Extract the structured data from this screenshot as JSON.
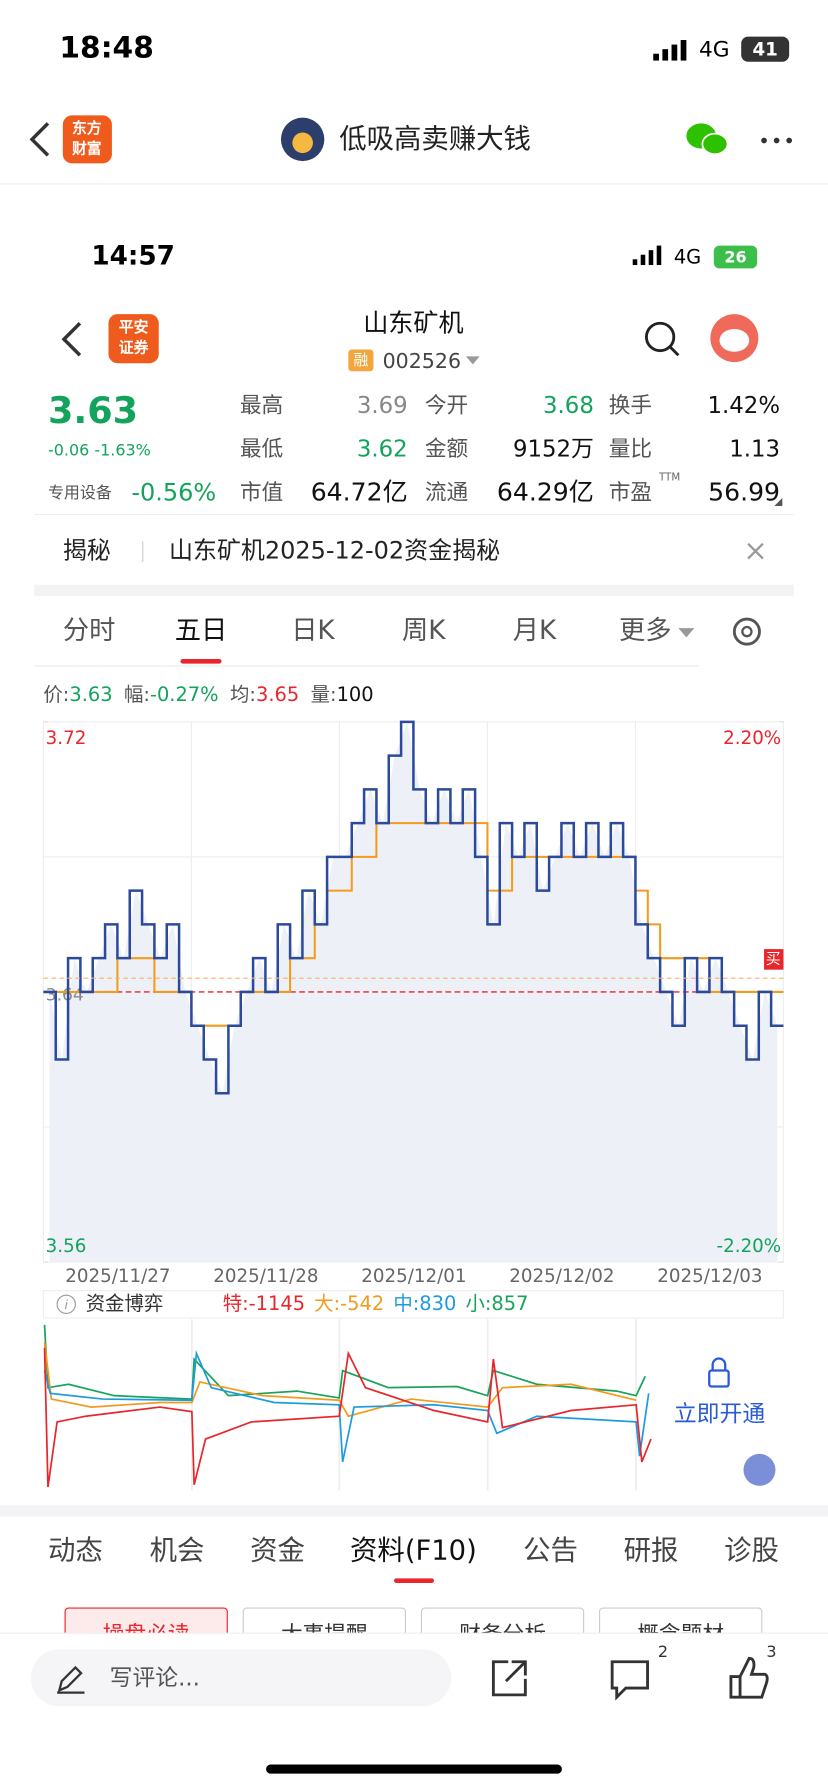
{
  "status": {
    "time": "18:48",
    "network": "4G",
    "battery": "41"
  },
  "nav": {
    "logo": [
      "东方",
      "财富"
    ],
    "title": "低吸高卖赚大钱"
  },
  "inner_status": {
    "time": "14:57",
    "network": "4G",
    "battery": "26"
  },
  "stock": {
    "broker": [
      "平安",
      "证券"
    ],
    "name": "山东矿机",
    "tag": "融",
    "code": "002526"
  },
  "quote": {
    "price": "3.63",
    "change": "-0.06 -1.63%",
    "sector": "专用设备",
    "sector_change": "-0.56%",
    "cells": [
      {
        "label": "最高",
        "value": "3.69"
      },
      {
        "label": "今开",
        "value": "3.68"
      },
      {
        "label": "换手",
        "value": "1.42%"
      },
      {
        "label": "最低",
        "value": "3.62"
      },
      {
        "label": "金额",
        "value": "9152万"
      },
      {
        "label": "量比",
        "value": "1.13"
      },
      {
        "label": "市值",
        "value": "64.72亿"
      },
      {
        "label": "流通",
        "value": "64.29亿"
      },
      {
        "label": "市盈",
        "value": "56.99"
      }
    ],
    "ttm": "TTM"
  },
  "banner": {
    "tag": "揭秘",
    "text": "山东矿机2025-12-02资金揭秘"
  },
  "tabs": [
    "分时",
    "五日",
    "日K",
    "周K",
    "月K",
    "更多"
  ],
  "info": {
    "items": [
      {
        "label": "价:",
        "value": "3.63"
      },
      {
        "label": "幅:",
        "value": "-0.27%"
      },
      {
        "label": "均:",
        "value": "3.65"
      },
      {
        "label": "量:",
        "value": "100"
      }
    ]
  },
  "chart_data": {
    "type": "line",
    "categories": [
      null,
      null,
      null,
      null,
      null,
      null,
      "2025/11/27",
      null,
      null,
      null,
      null,
      null,
      null,
      null,
      null,
      null,
      null,
      null,
      "2025/11/28",
      null,
      null,
      null,
      null,
      null,
      null,
      null,
      null,
      null,
      null,
      null,
      "2025/12/01",
      null,
      null,
      null,
      null,
      null,
      null,
      null,
      null,
      null,
      null,
      null,
      "2025/12/02",
      null,
      null,
      null,
      null,
      null,
      null,
      null,
      null,
      null,
      null,
      null,
      "2025/12/03",
      null,
      null,
      null,
      null,
      null
    ],
    "series": [
      {
        "name": "价",
        "color": "#2b4a9c",
        "values": [
          3.64,
          3.62,
          3.65,
          3.64,
          3.65,
          3.66,
          3.65,
          3.67,
          3.66,
          3.65,
          3.66,
          3.64,
          3.63,
          3.62,
          3.61,
          3.63,
          3.64,
          3.65,
          3.64,
          3.66,
          3.65,
          3.67,
          3.66,
          3.68,
          3.68,
          3.69,
          3.7,
          3.69,
          3.71,
          3.72,
          3.7,
          3.69,
          3.7,
          3.69,
          3.7,
          3.68,
          3.66,
          3.69,
          3.68,
          3.69,
          3.67,
          3.68,
          3.69,
          3.68,
          3.69,
          3.68,
          3.69,
          3.68,
          3.66,
          3.65,
          3.64,
          3.63,
          3.65,
          3.64,
          3.65,
          3.64,
          3.63,
          3.62,
          3.64,
          3.63
        ]
      },
      {
        "name": "均",
        "color": "#f29b1d",
        "values": [
          3.64,
          3.64,
          3.64,
          3.64,
          3.64,
          3.64,
          3.65,
          3.65,
          3.65,
          3.64,
          3.64,
          3.64,
          3.63,
          3.63,
          3.63,
          3.63,
          3.64,
          3.64,
          3.64,
          3.64,
          3.65,
          3.65,
          3.66,
          3.67,
          3.67,
          3.68,
          3.68,
          3.69,
          3.69,
          3.69,
          3.69,
          3.69,
          3.69,
          3.69,
          3.69,
          3.69,
          3.67,
          3.67,
          3.68,
          3.68,
          3.68,
          3.68,
          3.68,
          3.68,
          3.68,
          3.68,
          3.68,
          3.68,
          3.67,
          3.66,
          3.65,
          3.65,
          3.65,
          3.65,
          3.64,
          3.64,
          3.64,
          3.64,
          3.64,
          3.64
        ]
      }
    ],
    "ylim": [
      3.56,
      3.72
    ],
    "yticks": [
      3.56,
      3.72
    ],
    "y2lim": [
      -2.2,
      2.2
    ],
    "y2ticks": [
      {
        "value": -2.2,
        "label": "-2.20%"
      },
      {
        "value": 2.2,
        "label": "2.20%"
      }
    ],
    "prev_close": 3.64,
    "badge": "买",
    "grid": true
  },
  "flow": {
    "title": "资金博弈",
    "items": [
      {
        "label": "特:-1145",
        "color": "#e8262c"
      },
      {
        "label": "大:-542",
        "color": "#f29b1d"
      },
      {
        "label": "中:830",
        "color": "#1e9be0"
      },
      {
        "label": "小:857",
        "color": "#19a35a"
      }
    ],
    "unlock": "立即开通"
  },
  "bottom_tabs": [
    "动态",
    "机会",
    "资金",
    "资料(F10)",
    "公告",
    "研报",
    "诊股"
  ],
  "buttons": [
    "操盘必读",
    "大事提醒",
    "财务分析",
    "概念题材"
  ],
  "comment_bar": {
    "placeholder": "写评论...",
    "comments": "2",
    "likes": "3"
  }
}
